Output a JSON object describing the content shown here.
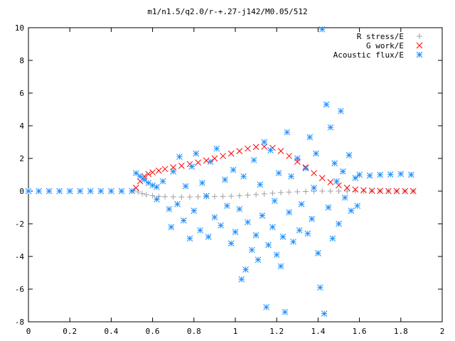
{
  "chart_data": {
    "type": "scatter",
    "title": "m1/n1.5/q2.0/r-+.27-j142/M0.05/512",
    "xlabel": "",
    "ylabel": "",
    "xlim": [
      0,
      2
    ],
    "ylim": [
      -8,
      10
    ],
    "xticks": [
      0,
      0.2,
      0.4,
      0.6,
      0.8,
      1,
      1.2,
      1.4,
      1.6,
      1.8,
      2
    ],
    "xtick_labels": [
      "0",
      "0.2",
      "0.4",
      "0.6",
      "0.8",
      "1",
      "1.2",
      "1.4",
      "1.6",
      "1.8",
      "2"
    ],
    "yticks": [
      -8,
      -6,
      -4,
      -2,
      0,
      2,
      4,
      6,
      8,
      10
    ],
    "ytick_labels": [
      "-8",
      "-6",
      "-4",
      "-2",
      "0",
      "2",
      "4",
      "6",
      "8",
      "10"
    ],
    "grid": false,
    "legend_position": "top-right",
    "series": [
      {
        "name": "R stress/E",
        "marker": "plus",
        "color": "#a0a0a0",
        "points": [
          [
            0.51,
            0.05
          ],
          [
            0.53,
            -0.05
          ],
          [
            0.55,
            -0.15
          ],
          [
            0.57,
            -0.22
          ],
          [
            0.6,
            -0.28
          ],
          [
            0.63,
            -0.32
          ],
          [
            0.66,
            -0.34
          ],
          [
            0.7,
            -0.35
          ],
          [
            0.74,
            -0.36
          ],
          [
            0.78,
            -0.36
          ],
          [
            0.82,
            -0.35
          ],
          [
            0.86,
            -0.34
          ],
          [
            0.9,
            -0.33
          ],
          [
            0.94,
            -0.32
          ],
          [
            0.98,
            -0.31
          ],
          [
            1.02,
            -0.28
          ],
          [
            1.06,
            -0.25
          ],
          [
            1.1,
            -0.21
          ],
          [
            1.14,
            -0.17
          ],
          [
            1.18,
            -0.13
          ],
          [
            1.22,
            -0.09
          ],
          [
            1.26,
            -0.06
          ],
          [
            1.3,
            -0.04
          ],
          [
            1.34,
            -0.02
          ],
          [
            1.38,
            -0.01
          ],
          [
            1.42,
            0.0
          ],
          [
            1.46,
            0.0
          ],
          [
            1.5,
            0.0
          ],
          [
            1.54,
            0.0
          ],
          [
            1.58,
            0.0
          ],
          [
            1.62,
            0.0
          ],
          [
            1.66,
            0.0
          ],
          [
            1.7,
            0.0
          ],
          [
            1.74,
            0.0
          ],
          [
            1.78,
            0.0
          ],
          [
            1.82,
            0.0
          ],
          [
            1.86,
            0.0
          ]
        ]
      },
      {
        "name": "G work/E",
        "marker": "cross",
        "color": "#ff0000",
        "points": [
          [
            0.52,
            0.2
          ],
          [
            0.54,
            0.6
          ],
          [
            0.56,
            0.9
          ],
          [
            0.58,
            1.05
          ],
          [
            0.6,
            1.15
          ],
          [
            0.63,
            1.25
          ],
          [
            0.66,
            1.35
          ],
          [
            0.7,
            1.45
          ],
          [
            0.74,
            1.55
          ],
          [
            0.78,
            1.65
          ],
          [
            0.82,
            1.75
          ],
          [
            0.86,
            1.87
          ],
          [
            0.9,
            2.0
          ],
          [
            0.94,
            2.15
          ],
          [
            0.98,
            2.3
          ],
          [
            1.02,
            2.45
          ],
          [
            1.06,
            2.6
          ],
          [
            1.1,
            2.7
          ],
          [
            1.14,
            2.72
          ],
          [
            1.18,
            2.65
          ],
          [
            1.22,
            2.45
          ],
          [
            1.26,
            2.15
          ],
          [
            1.3,
            1.8
          ],
          [
            1.34,
            1.45
          ],
          [
            1.38,
            1.1
          ],
          [
            1.42,
            0.8
          ],
          [
            1.46,
            0.55
          ],
          [
            1.5,
            0.35
          ],
          [
            1.54,
            0.2
          ],
          [
            1.58,
            0.1
          ],
          [
            1.62,
            0.05
          ],
          [
            1.66,
            0.02
          ],
          [
            1.7,
            0.01
          ],
          [
            1.74,
            0.0
          ],
          [
            1.78,
            0.0
          ],
          [
            1.82,
            0.0
          ],
          [
            1.86,
            0.0
          ]
        ]
      },
      {
        "name": "Acoustic flux/E",
        "marker": "star",
        "color": "#1e90ff",
        "points": [
          [
            0.0,
            0.0
          ],
          [
            0.05,
            0.0
          ],
          [
            0.1,
            0.0
          ],
          [
            0.15,
            0.0
          ],
          [
            0.2,
            0.0
          ],
          [
            0.25,
            0.0
          ],
          [
            0.3,
            0.0
          ],
          [
            0.35,
            0.0
          ],
          [
            0.4,
            0.0
          ],
          [
            0.45,
            0.0
          ],
          [
            0.5,
            0.0
          ],
          [
            0.52,
            1.1
          ],
          [
            0.54,
            0.9
          ],
          [
            0.56,
            0.7
          ],
          [
            0.58,
            0.5
          ],
          [
            0.6,
            0.35
          ],
          [
            0.62,
            0.25
          ],
          [
            1.6,
            1.0
          ],
          [
            1.65,
            0.95
          ],
          [
            1.7,
            1.0
          ],
          [
            1.75,
            1.02
          ],
          [
            1.8,
            1.05
          ],
          [
            1.85,
            1.0
          ],
          [
            0.62,
            -0.5
          ],
          [
            0.65,
            0.6
          ],
          [
            0.68,
            -1.1
          ],
          [
            0.69,
            -2.2
          ],
          [
            0.7,
            1.2
          ],
          [
            0.72,
            -0.8
          ],
          [
            0.73,
            2.1
          ],
          [
            0.75,
            -1.8
          ],
          [
            0.76,
            0.3
          ],
          [
            0.78,
            -2.9
          ],
          [
            0.79,
            1.5
          ],
          [
            0.8,
            -1.2
          ],
          [
            0.81,
            2.3
          ],
          [
            0.83,
            -2.4
          ],
          [
            0.84,
            0.5
          ],
          [
            0.86,
            -0.3
          ],
          [
            0.87,
            -2.8
          ],
          [
            0.88,
            1.8
          ],
          [
            0.9,
            -1.6
          ],
          [
            0.91,
            2.6
          ],
          [
            0.93,
            -2.1
          ],
          [
            0.95,
            0.7
          ],
          [
            0.96,
            -0.9
          ],
          [
            0.98,
            -3.2
          ],
          [
            0.99,
            1.3
          ],
          [
            1.0,
            -2.5
          ],
          [
            1.02,
            -1.1
          ],
          [
            1.03,
            -5.4
          ],
          [
            1.04,
            0.9
          ],
          [
            1.05,
            -4.8
          ],
          [
            1.06,
            -1.9
          ],
          [
            1.08,
            -3.6
          ],
          [
            1.09,
            1.9
          ],
          [
            1.1,
            -2.7
          ],
          [
            1.11,
            -4.2
          ],
          [
            1.12,
            0.4
          ],
          [
            1.13,
            -1.5
          ],
          [
            1.14,
            3.0
          ],
          [
            1.15,
            -7.1
          ],
          [
            1.16,
            -3.3
          ],
          [
            1.17,
            2.5
          ],
          [
            1.18,
            -2.2
          ],
          [
            1.19,
            -0.6
          ],
          [
            1.2,
            -3.9
          ],
          [
            1.21,
            1.1
          ],
          [
            1.22,
            -4.6
          ],
          [
            1.23,
            -2.8
          ],
          [
            1.24,
            -7.4
          ],
          [
            1.25,
            3.6
          ],
          [
            1.26,
            -1.3
          ],
          [
            1.27,
            0.9
          ],
          [
            1.28,
            -3.1
          ],
          [
            1.3,
            2.0
          ],
          [
            1.31,
            -2.4
          ],
          [
            1.32,
            -0.8
          ],
          [
            1.34,
            1.4
          ],
          [
            1.35,
            -2.6
          ],
          [
            1.36,
            3.3
          ],
          [
            1.37,
            -1.7
          ],
          [
            1.38,
            0.2
          ],
          [
            1.39,
            2.3
          ],
          [
            1.4,
            -3.8
          ],
          [
            1.41,
            -5.9
          ],
          [
            1.42,
            9.9
          ],
          [
            1.43,
            -7.5
          ],
          [
            1.44,
            5.3
          ],
          [
            1.45,
            -1.0
          ],
          [
            1.46,
            3.9
          ],
          [
            1.47,
            -2.9
          ],
          [
            1.48,
            1.7
          ],
          [
            1.49,
            0.6
          ],
          [
            1.5,
            -2.0
          ],
          [
            1.51,
            4.9
          ],
          [
            1.52,
            1.2
          ],
          [
            1.53,
            -0.4
          ],
          [
            1.55,
            2.2
          ],
          [
            1.56,
            -1.2
          ],
          [
            1.58,
            0.8
          ],
          [
            1.59,
            -0.9
          ]
        ]
      }
    ]
  }
}
